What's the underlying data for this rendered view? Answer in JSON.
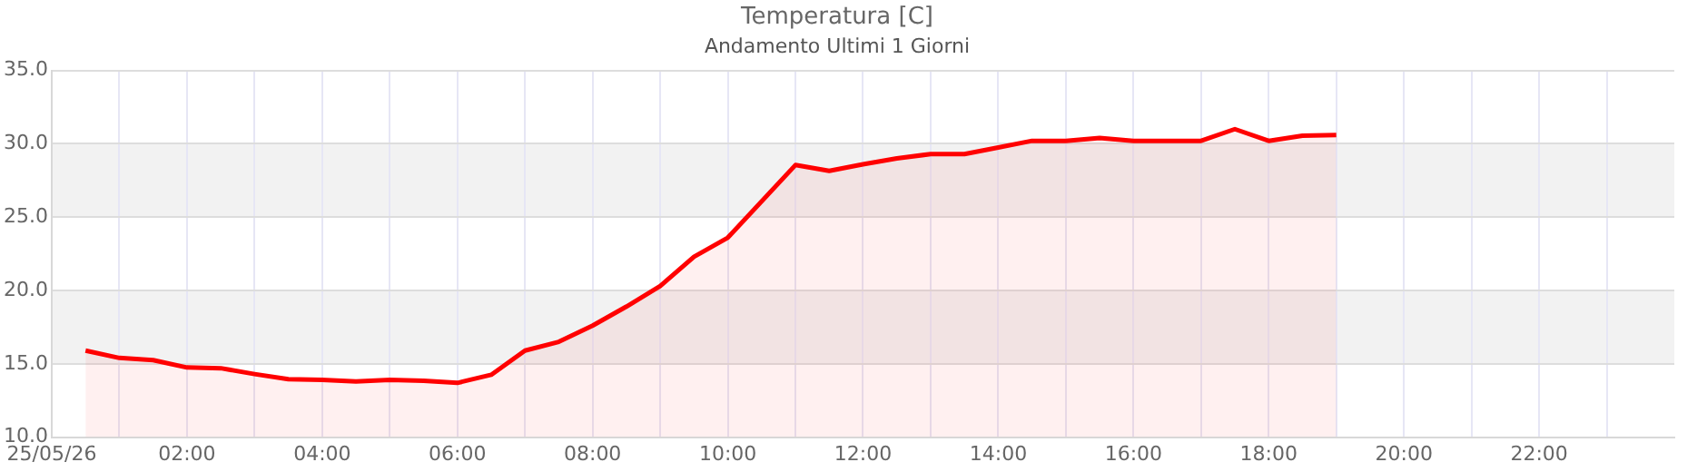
{
  "chart_data": {
    "type": "area",
    "title": "Temperatura [C]",
    "subtitle": "Andamento Ultimi 1 Giorni",
    "x": [
      0.5,
      1,
      1.5,
      2,
      2.5,
      3,
      3.5,
      4,
      4.5,
      5,
      5.5,
      6,
      6.5,
      7,
      7.5,
      8,
      8.5,
      9,
      9.5,
      10,
      11,
      11.5,
      12,
      12.5,
      13,
      13.5,
      14,
      14.5,
      15,
      15.5,
      16,
      16.5,
      17,
      17.5,
      18,
      18.5,
      19
    ],
    "series": [
      {
        "color": "#ff0000",
        "values": [
          15.9,
          15.4,
          15.25,
          14.75,
          14.7,
          14.3,
          13.95,
          13.9,
          13.8,
          13.9,
          13.85,
          13.7,
          14.25,
          15.9,
          16.5,
          17.6,
          18.9,
          20.3,
          22.3,
          23.6,
          28.55,
          28.15,
          28.6,
          29.0,
          29.3,
          29.3,
          29.75,
          30.2,
          30.2,
          30.4,
          30.2,
          30.2,
          30.2,
          31.0,
          30.2,
          30.55,
          30.6
        ]
      }
    ],
    "xlim": [
      0,
      24
    ],
    "xticks": [
      {
        "value": 0,
        "label": "25/05/26"
      },
      {
        "value": 1,
        "label": null
      },
      {
        "value": 2,
        "label": "02:00"
      },
      {
        "value": 3,
        "label": null
      },
      {
        "value": 4,
        "label": "04:00"
      },
      {
        "value": 5,
        "label": null
      },
      {
        "value": 6,
        "label": "06:00"
      },
      {
        "value": 7,
        "label": null
      },
      {
        "value": 8,
        "label": "08:00"
      },
      {
        "value": 9,
        "label": null
      },
      {
        "value": 10,
        "label": "10:00"
      },
      {
        "value": 11,
        "label": null
      },
      {
        "value": 12,
        "label": "12:00"
      },
      {
        "value": 13,
        "label": null
      },
      {
        "value": 14,
        "label": "14:00"
      },
      {
        "value": 15,
        "label": null
      },
      {
        "value": 16,
        "label": "16:00"
      },
      {
        "value": 17,
        "label": null
      },
      {
        "value": 18,
        "label": "18:00"
      },
      {
        "value": 19,
        "label": null
      },
      {
        "value": 20,
        "label": "20:00"
      },
      {
        "value": 21,
        "label": null
      },
      {
        "value": 22,
        "label": "22:00"
      },
      {
        "value": 23,
        "label": null
      }
    ],
    "ylim": [
      10,
      35
    ],
    "yticks": [
      {
        "value": 10,
        "label": "10.0"
      },
      {
        "value": 15,
        "label": "15.0"
      },
      {
        "value": 20,
        "label": "20.0"
      },
      {
        "value": 25,
        "label": "25.0"
      },
      {
        "value": 30,
        "label": "30.0"
      },
      {
        "value": 35,
        "label": "35.0"
      }
    ],
    "bands": [
      {
        "axis": "y",
        "from": 15,
        "to": 20,
        "color": "#f2f2f2"
      },
      {
        "axis": "y",
        "from": 25,
        "to": 30,
        "color": "#f2f2f2"
      }
    ],
    "grid": true,
    "legend": false,
    "marker": "none",
    "line_style": "solid"
  }
}
